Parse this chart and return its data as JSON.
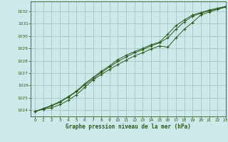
{
  "title": "Graphe pression niveau de la mer (hPa)",
  "bg_color": "#cceaea",
  "grid_color": "#a0bebe",
  "line_color": "#2d5a1b",
  "xlim": [
    -0.5,
    23
  ],
  "ylim": [
    1023.5,
    1032.8
  ],
  "yticks": [
    1024,
    1025,
    1026,
    1027,
    1028,
    1029,
    1030,
    1031,
    1032
  ],
  "xticks": [
    0,
    1,
    2,
    3,
    4,
    5,
    6,
    7,
    8,
    9,
    10,
    11,
    12,
    13,
    14,
    15,
    16,
    17,
    18,
    19,
    20,
    21,
    22,
    23
  ],
  "series1_x": [
    0,
    1,
    2,
    3,
    4,
    5,
    6,
    7,
    8,
    9,
    10,
    11,
    12,
    13,
    14,
    15,
    16,
    17,
    18,
    19,
    20,
    21,
    22,
    23
  ],
  "series1_y": [
    1023.9,
    1024.1,
    1024.2,
    1024.45,
    1024.8,
    1025.25,
    1025.85,
    1026.45,
    1026.9,
    1027.3,
    1027.7,
    1028.05,
    1028.4,
    1028.65,
    1028.95,
    1029.2,
    1029.1,
    1029.85,
    1030.55,
    1031.1,
    1031.7,
    1031.95,
    1032.15,
    1032.35
  ],
  "series2_x": [
    0,
    1,
    2,
    3,
    4,
    5,
    6,
    7,
    8,
    9,
    10,
    11,
    12,
    13,
    14,
    15,
    16,
    17,
    18,
    19,
    20,
    21,
    22,
    23
  ],
  "series2_y": [
    1023.9,
    1024.1,
    1024.35,
    1024.65,
    1025.05,
    1025.5,
    1026.05,
    1026.55,
    1027.05,
    1027.5,
    1027.95,
    1028.3,
    1028.65,
    1028.9,
    1029.2,
    1029.45,
    1029.85,
    1030.55,
    1031.15,
    1031.6,
    1031.85,
    1032.05,
    1032.2,
    1032.35
  ],
  "series3_x": [
    0,
    1,
    2,
    3,
    4,
    5,
    6,
    7,
    8,
    9,
    10,
    11,
    12,
    13,
    14,
    15,
    16,
    17,
    18,
    19,
    20,
    21,
    22,
    23
  ],
  "series3_y": [
    1023.9,
    1024.15,
    1024.4,
    1024.7,
    1025.1,
    1025.55,
    1026.15,
    1026.65,
    1027.15,
    1027.6,
    1028.1,
    1028.45,
    1028.75,
    1029.0,
    1029.3,
    1029.5,
    1030.15,
    1030.85,
    1031.3,
    1031.7,
    1031.9,
    1032.1,
    1032.25,
    1032.4
  ]
}
